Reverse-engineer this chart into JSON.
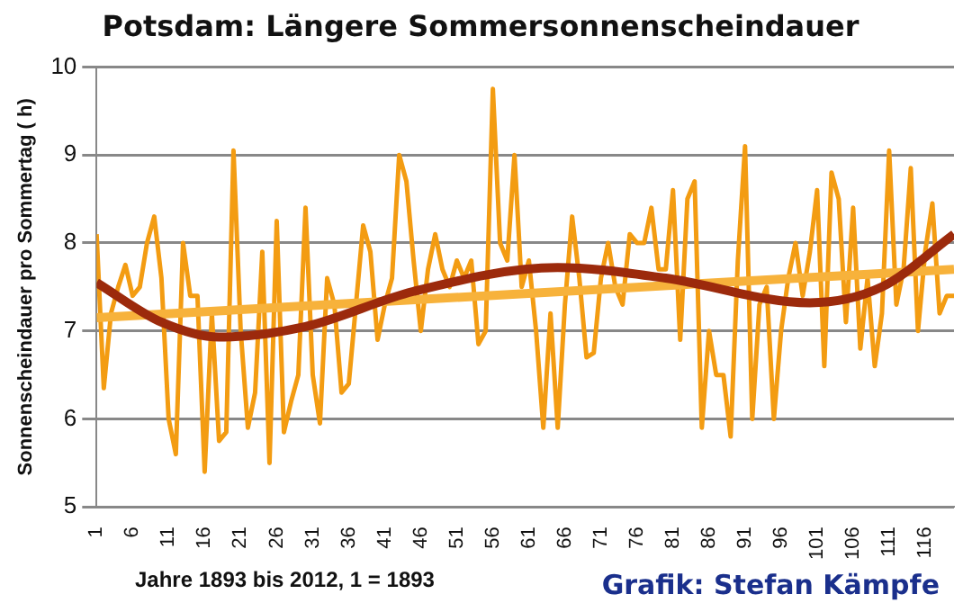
{
  "chart_data": {
    "type": "line",
    "title": "Potsdam: Längere Sommersonnenscheindauer",
    "ylabel": "Sonnenscheindauer pro Sommertag ( h)",
    "annotations": [
      "Jahre 1893 bis 2012, 1 = 1893",
      "Grafik: Stefan Kämpfe"
    ],
    "x": [
      1,
      2,
      3,
      4,
      5,
      6,
      7,
      8,
      9,
      10,
      11,
      12,
      13,
      14,
      15,
      16,
      17,
      18,
      19,
      20,
      21,
      22,
      23,
      24,
      25,
      26,
      27,
      28,
      29,
      30,
      31,
      32,
      33,
      34,
      35,
      36,
      37,
      38,
      39,
      40,
      41,
      42,
      43,
      44,
      45,
      46,
      47,
      48,
      49,
      50,
      51,
      52,
      53,
      54,
      55,
      56,
      57,
      58,
      59,
      60,
      61,
      62,
      63,
      64,
      65,
      66,
      67,
      68,
      69,
      70,
      71,
      72,
      73,
      74,
      75,
      76,
      77,
      78,
      79,
      80,
      81,
      82,
      83,
      84,
      85,
      86,
      87,
      88,
      89,
      90,
      91,
      92,
      93,
      94,
      95,
      96,
      97,
      98,
      99,
      100,
      101,
      102,
      103,
      104,
      105,
      106,
      107,
      108,
      109,
      110,
      111,
      112,
      113,
      114,
      115,
      116,
      117,
      118,
      119,
      120
    ],
    "series": [
      {
        "color": "#f39c12",
        "values": [
          8.1,
          6.35,
          7.2,
          7.5,
          7.75,
          7.4,
          7.5,
          8.0,
          8.3,
          7.6,
          6.0,
          5.6,
          8.0,
          7.4,
          7.4,
          5.4,
          7.2,
          5.75,
          5.85,
          9.05,
          7.0,
          5.9,
          6.3,
          7.9,
          5.5,
          8.25,
          5.85,
          6.2,
          6.5,
          8.4,
          6.5,
          5.95,
          7.6,
          7.3,
          6.3,
          6.4,
          7.3,
          8.2,
          7.9,
          6.9,
          7.3,
          7.6,
          9.0,
          8.7,
          7.8,
          7.0,
          7.7,
          8.1,
          7.7,
          7.5,
          7.8,
          7.6,
          7.8,
          6.85,
          7.0,
          9.75,
          8.0,
          7.8,
          9.0,
          7.5,
          7.8,
          7.0,
          5.9,
          7.2,
          5.9,
          7.3,
          8.3,
          7.6,
          6.7,
          6.75,
          7.6,
          8.0,
          7.5,
          7.3,
          8.1,
          8.0,
          8.0,
          8.4,
          7.7,
          7.7,
          8.6,
          6.9,
          8.5,
          8.7,
          5.9,
          7.0,
          6.5,
          6.5,
          5.8,
          7.8,
          9.1,
          6.0,
          7.3,
          7.5,
          6.0,
          7.0,
          7.6,
          8.0,
          7.4,
          7.9,
          8.6,
          6.6,
          8.8,
          8.5,
          7.1,
          8.4,
          6.8,
          7.6,
          6.6,
          7.2,
          9.05,
          7.3,
          7.7,
          8.85,
          7.0,
          7.9,
          8.45,
          7.2,
          7.4,
          7.4
        ]
      },
      {
        "type": "line",
        "color": "#f7b23b",
        "x": [
          1,
          120
        ],
        "values": [
          7.15,
          7.7
        ]
      },
      {
        "type": "line",
        "color": "#9c2a0c",
        "x": [
          1,
          10,
          18,
          30,
          45,
          65,
          80,
          100,
          110,
          120
        ],
        "values": [
          7.55,
          7.1,
          6.93,
          7.05,
          7.45,
          7.72,
          7.6,
          7.32,
          7.5,
          8.1
        ]
      }
    ],
    "xlim": [
      1,
      120
    ],
    "xticks": [
      1,
      6,
      11,
      16,
      21,
      26,
      31,
      36,
      41,
      46,
      51,
      56,
      61,
      66,
      71,
      76,
      81,
      86,
      91,
      96,
      101,
      106,
      111,
      116
    ],
    "ylim": [
      5,
      10
    ],
    "yticks": [
      5,
      6,
      7,
      8,
      9,
      10
    ],
    "grid": "y",
    "legend": false,
    "marker": "none",
    "line_style": "solid"
  }
}
